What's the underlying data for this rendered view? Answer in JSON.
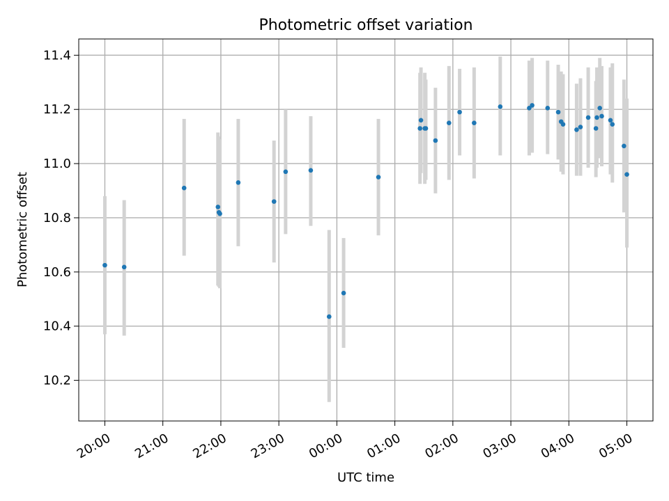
{
  "chart_data": {
    "type": "scatter",
    "title": "Photometric offset variation",
    "xlabel": "UTC time",
    "ylabel": "Photometric offset",
    "x_ticks": [
      "20:00",
      "21:00",
      "22:00",
      "23:00",
      "00:00",
      "01:00",
      "02:00",
      "03:00",
      "04:00",
      "05:00"
    ],
    "y_ticks": [
      "10.2",
      "10.4",
      "10.6",
      "10.8",
      "11.0",
      "11.2",
      "11.4"
    ],
    "xlim": [
      "19:33",
      "05:27"
    ],
    "ylim": [
      10.05,
      11.46
    ],
    "grid": true,
    "colors": {
      "point": "#1f77b4",
      "errorbar": "#d3d3d3",
      "grid": "#b0b0b0"
    },
    "points": [
      {
        "t": "20:00",
        "y": 10.625,
        "ylo": 10.37,
        "yhi": 10.88
      },
      {
        "t": "20:20",
        "y": 10.618,
        "ylo": 10.365,
        "yhi": 10.865
      },
      {
        "t": "21:22",
        "y": 10.91,
        "ylo": 10.66,
        "yhi": 11.165
      },
      {
        "t": "21:57",
        "y": 10.84,
        "ylo": 10.55,
        "yhi": 11.115
      },
      {
        "t": "21:58",
        "y": 10.82,
        "ylo": 10.545,
        "yhi": 11.1
      },
      {
        "t": "21:59",
        "y": 10.815,
        "ylo": 10.54,
        "yhi": 11.09
      },
      {
        "t": "22:18",
        "y": 10.93,
        "ylo": 10.695,
        "yhi": 11.165
      },
      {
        "t": "22:55",
        "y": 10.86,
        "ylo": 10.635,
        "yhi": 11.085
      },
      {
        "t": "23:07",
        "y": 10.97,
        "ylo": 10.74,
        "yhi": 11.2
      },
      {
        "t": "23:33",
        "y": 10.975,
        "ylo": 10.77,
        "yhi": 11.175
      },
      {
        "t": "23:52",
        "y": 10.435,
        "ylo": 10.12,
        "yhi": 10.755
      },
      {
        "t": "00:07",
        "y": 10.522,
        "ylo": 10.32,
        "yhi": 10.725
      },
      {
        "t": "00:43",
        "y": 10.95,
        "ylo": 10.735,
        "yhi": 11.165
      },
      {
        "t": "01:26",
        "y": 11.13,
        "ylo": 10.925,
        "yhi": 11.335
      },
      {
        "t": "01:27",
        "y": 11.16,
        "ylo": 10.965,
        "yhi": 11.355
      },
      {
        "t": "01:31",
        "y": 11.13,
        "ylo": 10.925,
        "yhi": 11.335
      },
      {
        "t": "01:32",
        "y": 11.13,
        "ylo": 10.94,
        "yhi": 11.31
      },
      {
        "t": "01:42",
        "y": 11.085,
        "ylo": 10.89,
        "yhi": 11.28
      },
      {
        "t": "01:56",
        "y": 11.15,
        "ylo": 10.94,
        "yhi": 11.36
      },
      {
        "t": "02:07",
        "y": 11.19,
        "ylo": 11.03,
        "yhi": 11.35
      },
      {
        "t": "02:22",
        "y": 11.15,
        "ylo": 10.945,
        "yhi": 11.355
      },
      {
        "t": "02:49",
        "y": 11.21,
        "ylo": 11.03,
        "yhi": 11.395
      },
      {
        "t": "03:19",
        "y": 11.205,
        "ylo": 11.03,
        "yhi": 11.38
      },
      {
        "t": "03:22",
        "y": 11.215,
        "ylo": 11.04,
        "yhi": 11.39
      },
      {
        "t": "03:38",
        "y": 11.205,
        "ylo": 11.035,
        "yhi": 11.38
      },
      {
        "t": "03:49",
        "y": 11.19,
        "ylo": 11.015,
        "yhi": 11.365
      },
      {
        "t": "03:52",
        "y": 11.155,
        "ylo": 10.97,
        "yhi": 11.34
      },
      {
        "t": "03:54",
        "y": 11.145,
        "ylo": 10.96,
        "yhi": 11.33
      },
      {
        "t": "04:08",
        "y": 11.125,
        "ylo": 10.955,
        "yhi": 11.295
      },
      {
        "t": "04:12",
        "y": 11.135,
        "ylo": 10.955,
        "yhi": 11.315
      },
      {
        "t": "04:20",
        "y": 11.17,
        "ylo": 10.985,
        "yhi": 11.355
      },
      {
        "t": "04:28",
        "y": 11.13,
        "ylo": 10.95,
        "yhi": 11.305
      },
      {
        "t": "04:29",
        "y": 11.17,
        "ylo": 10.985,
        "yhi": 11.355
      },
      {
        "t": "04:32",
        "y": 11.205,
        "ylo": 11.02,
        "yhi": 11.39
      },
      {
        "t": "04:34",
        "y": 11.175,
        "ylo": 10.99,
        "yhi": 11.36
      },
      {
        "t": "04:43",
        "y": 11.16,
        "ylo": 10.96,
        "yhi": 11.355
      },
      {
        "t": "04:45",
        "y": 11.145,
        "ylo": 10.93,
        "yhi": 11.37
      },
      {
        "t": "04:57",
        "y": 11.065,
        "ylo": 10.82,
        "yhi": 11.31
      },
      {
        "t": "05:00",
        "y": 10.96,
        "ylo": 10.69,
        "yhi": 11.24
      }
    ]
  }
}
